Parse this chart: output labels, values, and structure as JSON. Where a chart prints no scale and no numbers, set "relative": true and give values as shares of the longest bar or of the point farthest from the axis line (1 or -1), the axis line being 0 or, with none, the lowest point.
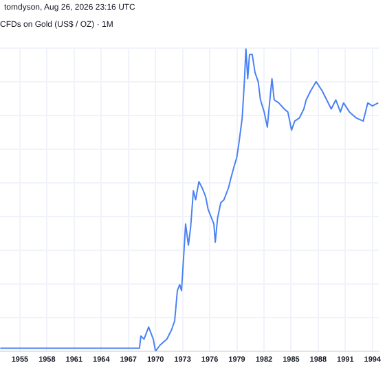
{
  "chart_data": {
    "type": "line",
    "title": "CFDs on Gold (US$ / OZ) · 1M",
    "subtitle": "tomdyson, Aug 26, 2026 23:16 UTC",
    "relative": true,
    "grid": true,
    "legend": false,
    "marker": "none",
    "line_style": "solid",
    "xlim": [
      1952.8,
      1994.7
    ],
    "xticks": [
      1955,
      1958,
      1961,
      1964,
      1967,
      1970,
      1973,
      1976,
      1979,
      1982,
      1985,
      1988,
      1991,
      1994
    ],
    "series": [
      {
        "color": "#4a82f4",
        "x": [
          1952.83,
          1960.66,
          1968.23,
          1968.38,
          1968.74,
          1969.24,
          1969.75,
          1970.0,
          1970.5,
          1971.26,
          1971.77,
          1972.12,
          1972.42,
          1972.68,
          1972.88,
          1973.13,
          1973.33,
          1973.64,
          1973.89,
          1974.19,
          1974.44,
          1974.8,
          1975.15,
          1975.55,
          1975.81,
          1976.06,
          1976.46,
          1976.61,
          1976.87,
          1977.22,
          1977.57,
          1978.08,
          1978.33,
          1978.69,
          1978.99,
          1979.24,
          1979.59,
          1979.85,
          1980.0,
          1980.2,
          1980.4,
          1980.7,
          1981.01,
          1981.36,
          1981.61,
          1982.02,
          1982.37,
          1982.62,
          1982.88,
          1983.13,
          1983.63,
          1984.24,
          1984.64,
          1985.05,
          1985.4,
          1985.91,
          1986.41,
          1986.67,
          1987.17,
          1987.77,
          1988.43,
          1988.94,
          1989.44,
          1989.95,
          1990.45,
          1990.8,
          1991.46,
          1992.22,
          1992.98,
          1993.48,
          1993.99,
          1994.64
        ],
        "values": [
          0.01,
          0.01,
          0.01,
          0.05,
          0.04,
          0.08,
          0.04,
          0,
          0.02,
          0.04,
          0.07,
          0.1,
          0.2,
          0.22,
          0.2,
          0.32,
          0.42,
          0.35,
          0.41,
          0.53,
          0.5,
          0.56,
          0.54,
          0.51,
          0.47,
          0.45,
          0.42,
          0.36,
          0.44,
          0.49,
          0.5,
          0.54,
          0.57,
          0.61,
          0.64,
          0.69,
          0.77,
          0.9,
          1,
          0.9,
          0.98,
          0.98,
          0.92,
          0.89,
          0.83,
          0.79,
          0.74,
          0.82,
          0.9,
          0.83,
          0.82,
          0.8,
          0.79,
          0.73,
          0.76,
          0.77,
          0.8,
          0.83,
          0.86,
          0.89,
          0.86,
          0.83,
          0.8,
          0.83,
          0.79,
          0.82,
          0.79,
          0.77,
          0.76,
          0.82,
          0.81,
          0.82
        ]
      }
    ]
  }
}
